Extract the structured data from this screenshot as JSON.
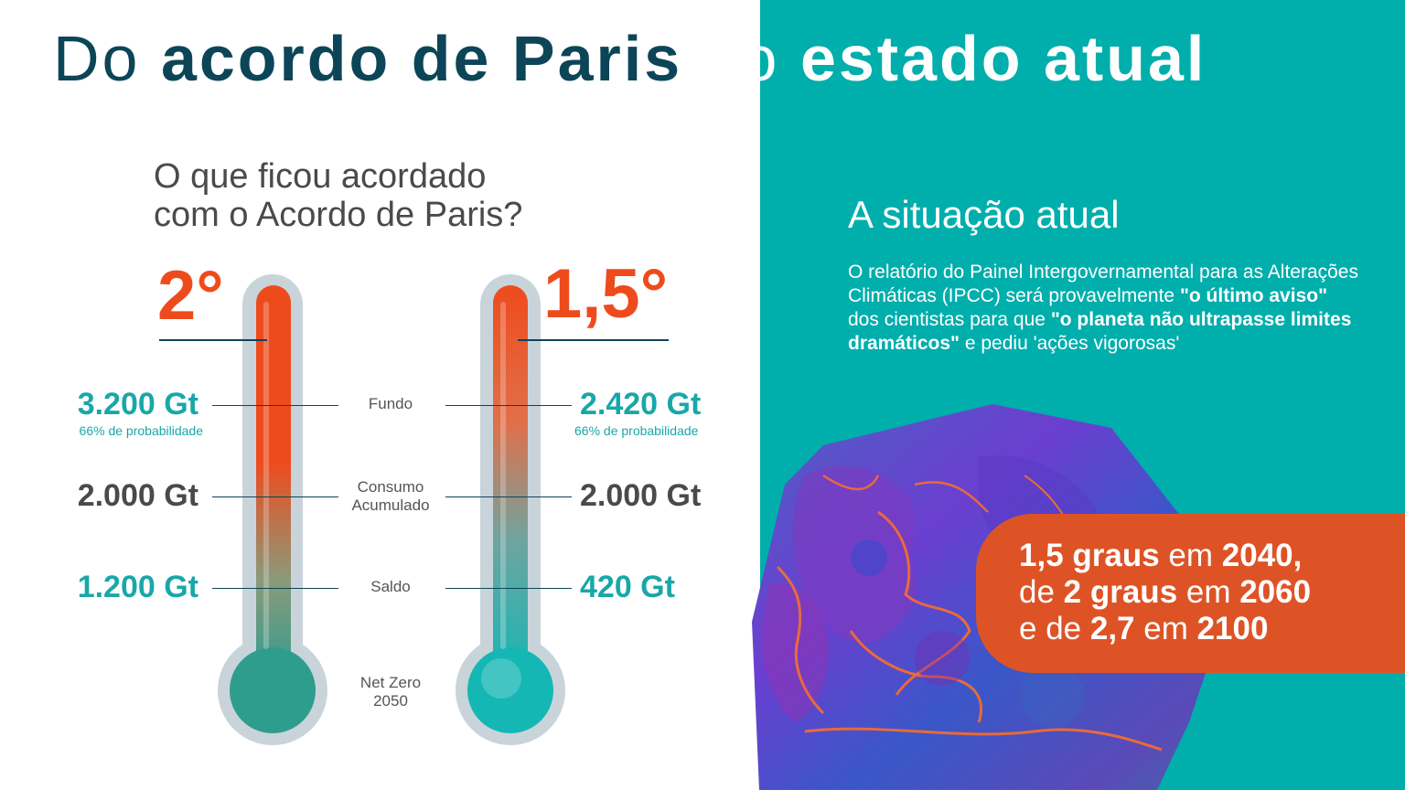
{
  "title": {
    "part1": "Do",
    "part2": "acordo de Paris",
    "part3": "ao",
    "part4": "estado atual"
  },
  "question": {
    "line1": "O que ficou acordado",
    "line2": "com o Acordo de Paris?"
  },
  "thermometers": {
    "left": {
      "degree": "2°"
    },
    "right": {
      "degree": "1,5°"
    }
  },
  "left_values": {
    "fundo": "3.200 Gt",
    "fundo_prob": "66% de probabilidade",
    "consumo": "2.000 Gt",
    "saldo": "1.200 Gt"
  },
  "right_values": {
    "fundo": "2.420 Gt",
    "fundo_prob": "66% de probabilidade",
    "consumo": "2.000 Gt",
    "saldo": "420 Gt"
  },
  "labels": {
    "fundo": "Fundo",
    "consumo_l1": "Consumo",
    "consumo_l2": "Acumulado",
    "saldo": "Saldo",
    "netzero_l1": "Net Zero",
    "netzero_l2": "2050"
  },
  "current": {
    "heading": "A situação atual",
    "p1": "O relatório do Painel Intergovernamental para as Alterações Climáticas (IPCC) será provavelmente ",
    "b1": "\"o último aviso\"",
    "p2": " dos cientistas para que ",
    "b2": "\"o planeta não ultrapasse limites dramáticos\"",
    "p3": " e pediu 'ações vigorosas'"
  },
  "projection": {
    "l1_b1": "1,5 graus",
    "l1_t": " em ",
    "l1_b2": "2040,",
    "l2_t1": "de ",
    "l2_b1": "2 graus",
    "l2_t2": " em ",
    "l2_b2": "2060",
    "l3_t1": "e de ",
    "l3_b1": "2,7",
    "l3_t2": " em ",
    "l3_b2": "2100"
  },
  "colors": {
    "teal": "#00aeac",
    "orange": "#ee4b1d",
    "navy": "#0c4557",
    "box_orange": "#de5326"
  }
}
